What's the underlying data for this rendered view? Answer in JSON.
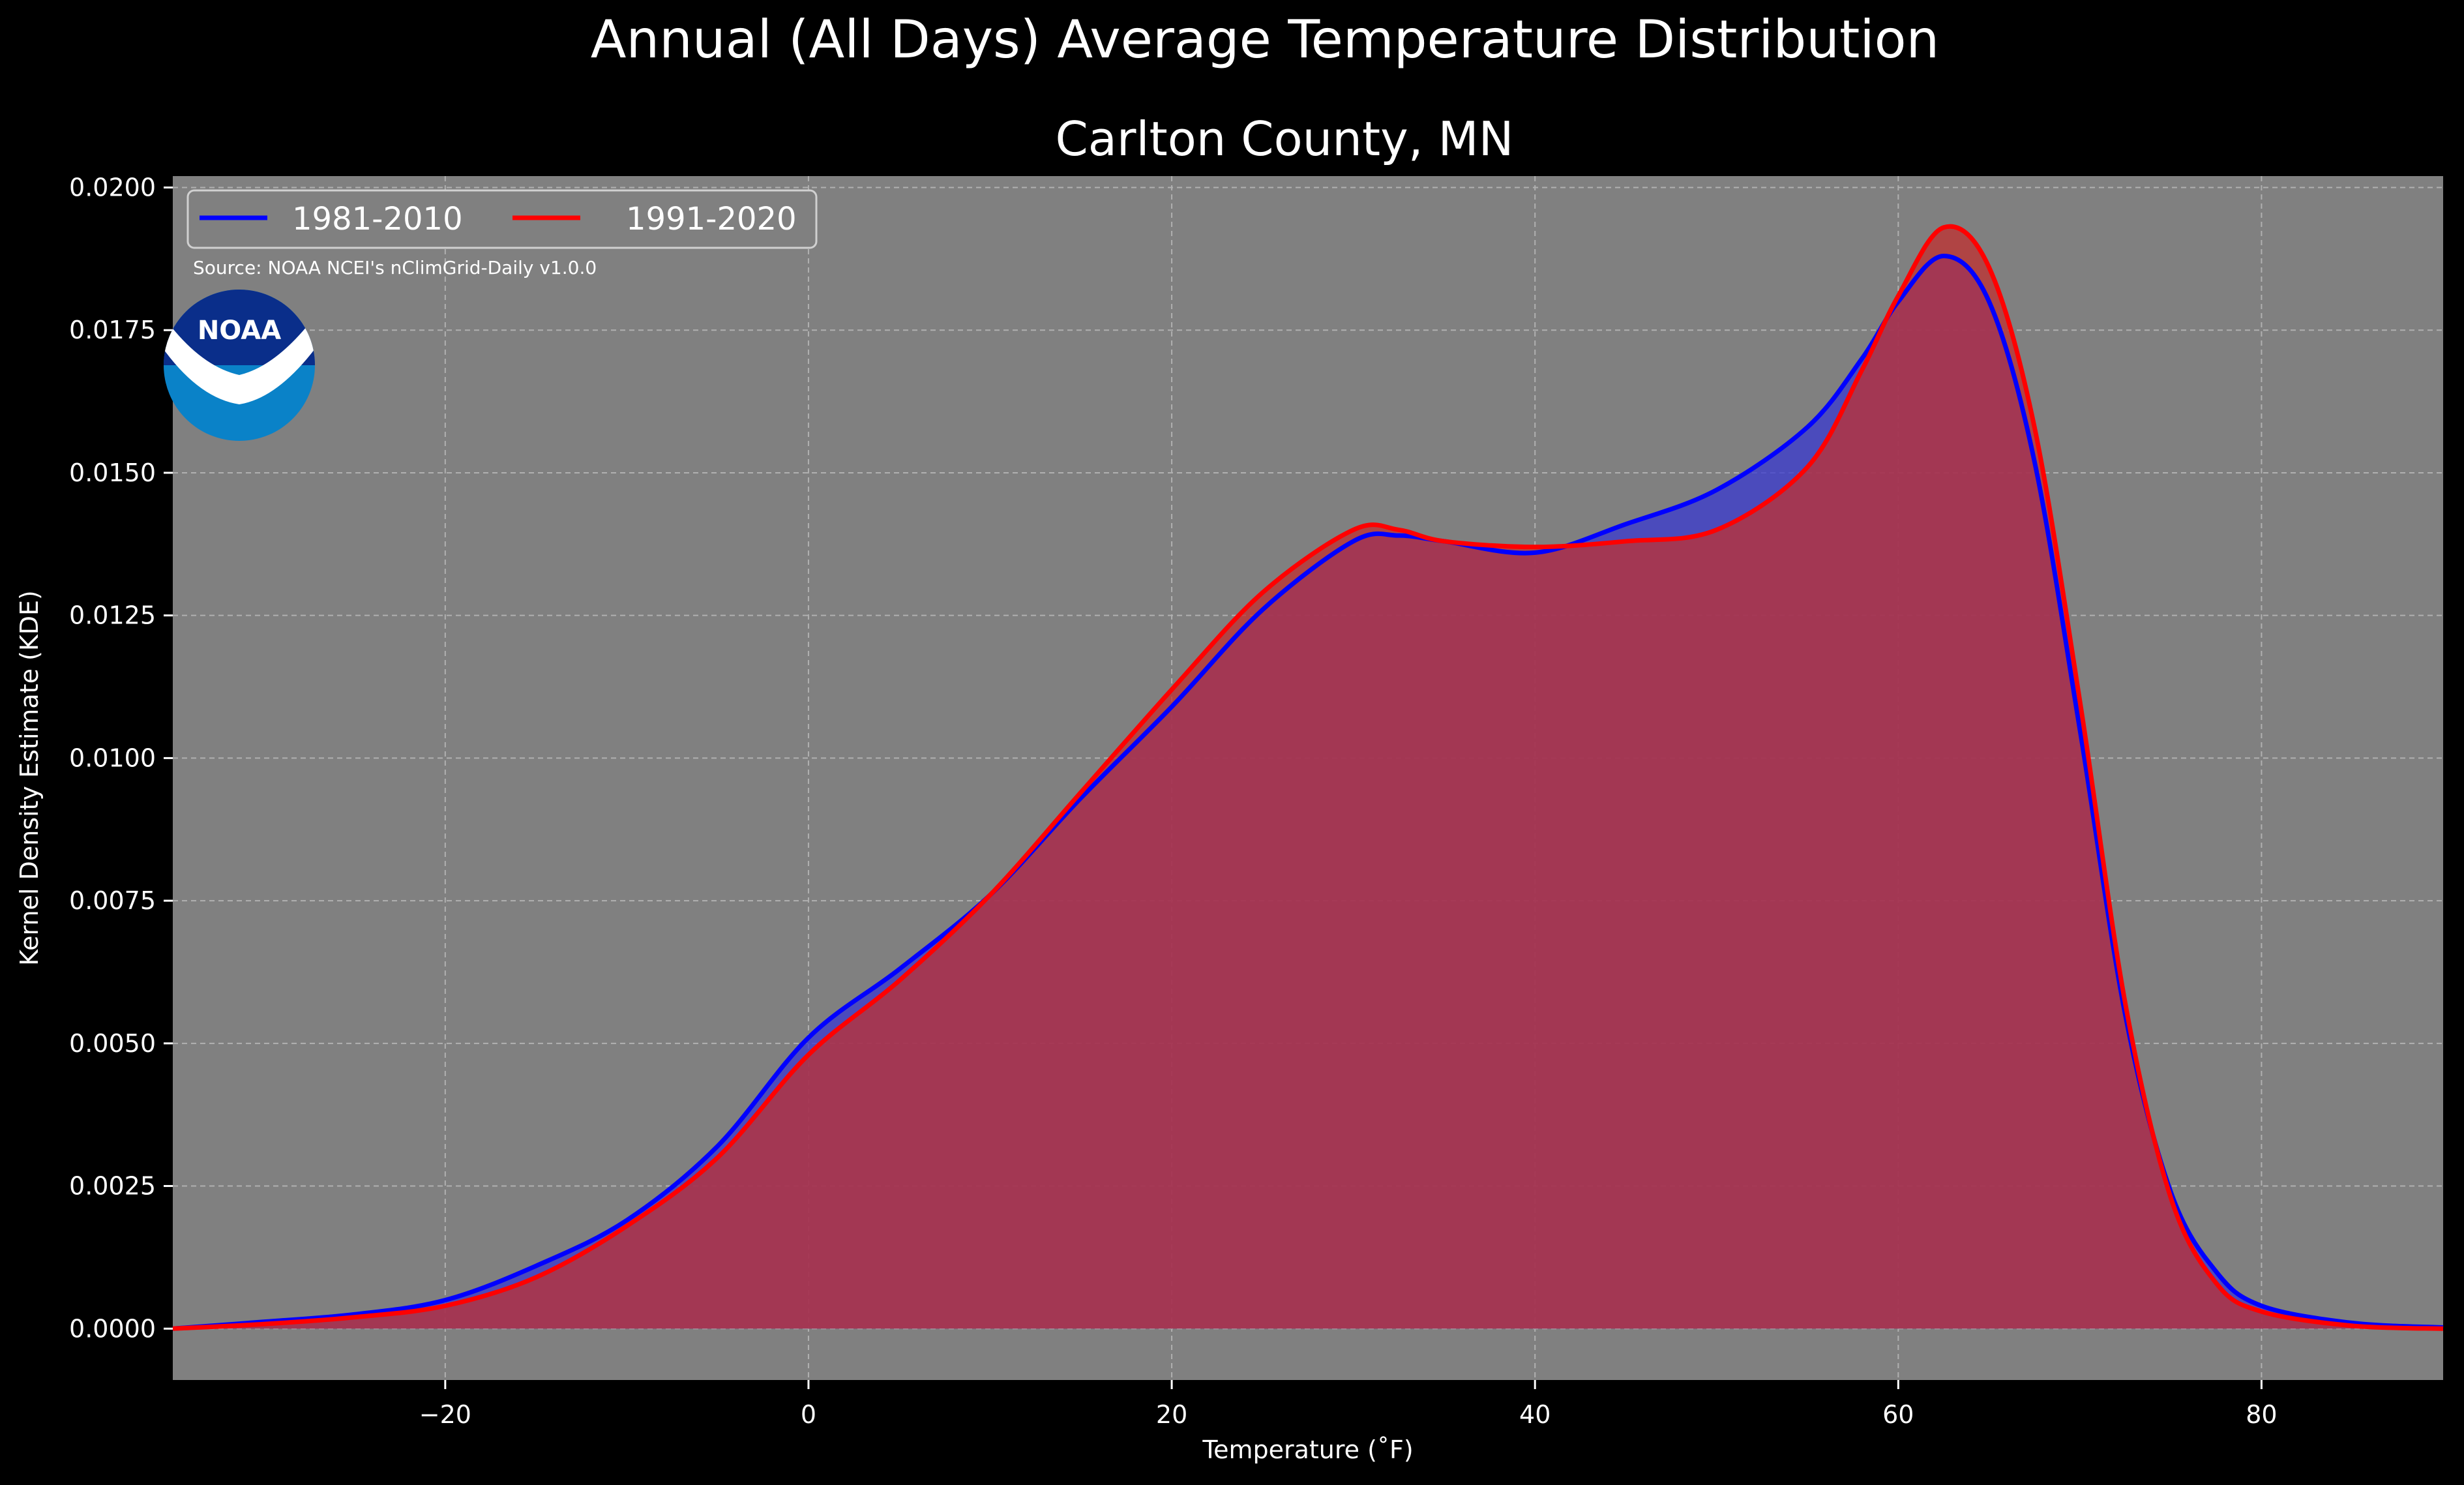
{
  "chart_data": {
    "type": "area",
    "suptitle": "Annual (All Days) Average Temperature Distribution",
    "title": "Carlton County, MN",
    "xlabel": "Temperature ($^\\circ$F)",
    "xlabel_text": "Temperature (˚F)",
    "ylabel": "Kernel Density Estimate (KDE)",
    "xlim": [
      -35,
      90
    ],
    "ylim": [
      -0.0009,
      0.0202
    ],
    "x_ticks": [
      -20,
      0,
      20,
      40,
      60,
      80
    ],
    "x_tick_labels": [
      "−20",
      "0",
      "20",
      "40",
      "60",
      "80"
    ],
    "y_ticks": [
      0.0,
      0.0025,
      0.005,
      0.0075,
      0.01,
      0.0125,
      0.015,
      0.0175,
      0.02
    ],
    "y_tick_labels": [
      "0.0000",
      "0.0025",
      "0.0050",
      "0.0075",
      "0.0100",
      "0.0125",
      "0.0150",
      "0.0175",
      "0.0200"
    ],
    "grid": true,
    "legend_position": "top-left",
    "source_note": "Source: NOAA NCEI's nClimGrid-Daily v1.0.0",
    "logo_text": "NOAA",
    "colors": {
      "background": "#000000",
      "plot_bg": "#808080",
      "text": "#ffffff"
    },
    "series": [
      {
        "name": "1981-2010",
        "color": "#0000ff",
        "fill": "#3a3ad0",
        "x": [
          -35,
          -30,
          -25,
          -20,
          -15,
          -10,
          -5,
          0,
          5,
          10,
          15,
          20,
          25,
          30,
          32.5,
          35,
          40,
          45,
          50,
          55,
          58,
          60,
          62.5,
          65,
          67.5,
          70,
          72.5,
          75,
          77.5,
          80,
          85,
          90
        ],
        "values": [
          0.0,
          0.00012,
          0.00025,
          0.0005,
          0.0011,
          0.0019,
          0.0032,
          0.0051,
          0.0063,
          0.0076,
          0.0093,
          0.0109,
          0.0126,
          0.0138,
          0.0139,
          0.0138,
          0.0136,
          0.0141,
          0.0147,
          0.0158,
          0.017,
          0.018,
          0.0188,
          0.018,
          0.0152,
          0.0105,
          0.0055,
          0.0024,
          0.001,
          0.0004,
          0.0001,
          2e-05
        ]
      },
      {
        "name": "1991-2020",
        "color": "#ff0000",
        "fill": "#c03030",
        "x": [
          -35,
          -30,
          -25,
          -20,
          -15,
          -10,
          -5,
          0,
          5,
          10,
          15,
          20,
          25,
          30,
          32.5,
          35,
          40,
          45,
          50,
          55,
          58,
          60,
          62.5,
          65,
          67.5,
          70,
          72.5,
          75,
          77.5,
          80,
          85,
          90
        ],
        "values": [
          0.0,
          8e-05,
          0.0002,
          0.0004,
          0.0009,
          0.0018,
          0.003,
          0.0048,
          0.0061,
          0.0076,
          0.0094,
          0.0112,
          0.0129,
          0.014,
          0.014,
          0.0138,
          0.0137,
          0.0138,
          0.014,
          0.0151,
          0.0168,
          0.0181,
          0.0193,
          0.0186,
          0.0158,
          0.011,
          0.0057,
          0.0023,
          0.0008,
          0.0003,
          5e-05,
          0.0
        ]
      }
    ]
  }
}
